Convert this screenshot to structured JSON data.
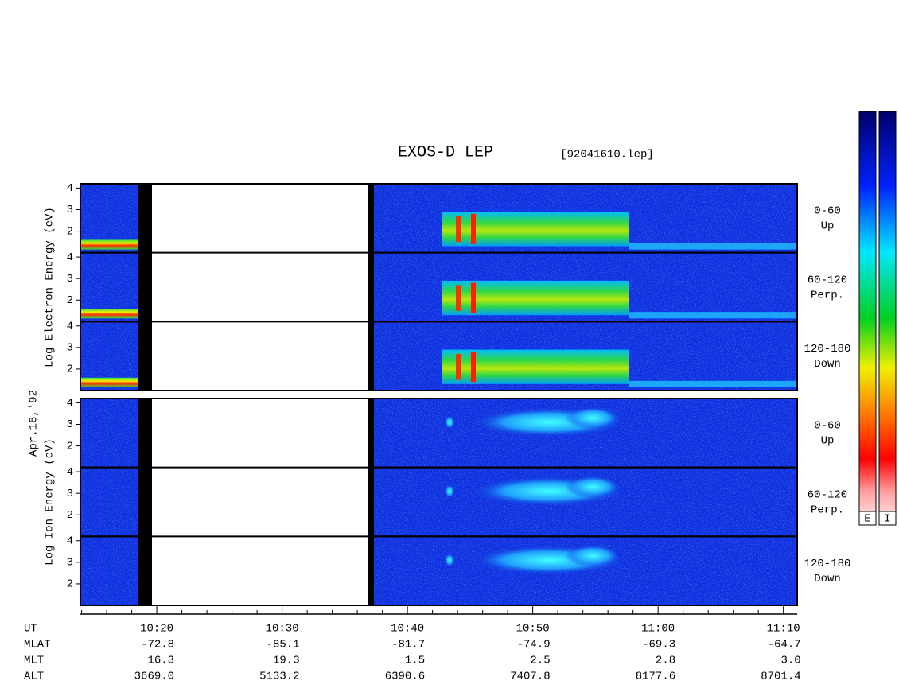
{
  "chart_data": {
    "type": "spectrogram",
    "title": "EXOS-D LEP",
    "file": "[92041610.lep]",
    "date": "Apr.16,'92",
    "groups": [
      {
        "label": "Log  Electron  Energy (eV)",
        "panels": [
          {
            "pitch": "0-60",
            "direction": "Up"
          },
          {
            "pitch": "60-120",
            "direction": "Perp."
          },
          {
            "pitch": "120-180",
            "direction": "Down"
          }
        ]
      },
      {
        "label": "Log  Ion  Energy (eV)",
        "panels": [
          {
            "pitch": "0-60",
            "direction": "Up"
          },
          {
            "pitch": "60-120",
            "direction": "Perp."
          },
          {
            "pitch": "120-180",
            "direction": "Down"
          }
        ]
      }
    ],
    "ylim": [
      1,
      4.2
    ],
    "yticks": [
      2,
      3,
      4
    ],
    "xlim": [
      13.9,
      71.1
    ],
    "xticks": [
      {
        "value": 20,
        "label": "10:20"
      },
      {
        "value": 30,
        "label": "10:30"
      },
      {
        "value": 40,
        "label": "10:40"
      },
      {
        "value": 50,
        "label": "10:50"
      },
      {
        "value": 60,
        "label": "11:00"
      },
      {
        "value": 70,
        "label": "11:10"
      }
    ],
    "xminorticks": [
      14,
      16,
      18,
      22,
      24,
      26,
      28,
      32,
      34,
      36,
      38,
      42,
      44,
      46,
      48,
      52,
      54,
      56,
      58,
      62,
      64,
      66,
      68
    ],
    "ephemeris": [
      {
        "label": "UT"
      },
      {
        "label": "MLAT",
        "values": [
          "-72.8",
          "-85.1",
          "-81.7",
          "-74.9",
          "-69.3",
          "-64.7"
        ]
      },
      {
        "label": "MLT",
        "values": [
          "16.3",
          "19.3",
          "1.5",
          "2.5",
          "2.8",
          "3.0"
        ]
      },
      {
        "label": "ALT",
        "values": [
          "3669.0",
          "5133.2",
          "6390.6",
          "7407.8",
          "8177.6",
          "8701.4"
        ]
      }
    ],
    "colorbar_labels": [
      "E",
      "I"
    ]
  }
}
